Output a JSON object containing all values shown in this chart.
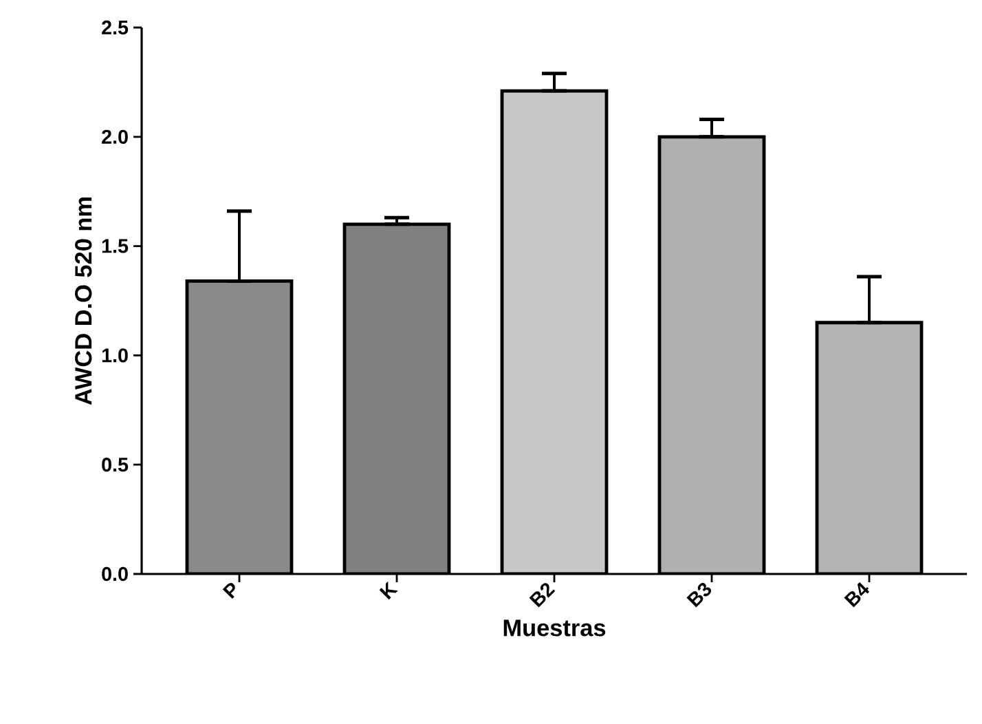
{
  "chart_data": {
    "type": "bar",
    "xlabel": "Muestras",
    "ylabel": "AWCD D.O 520 nm",
    "categories": [
      "P",
      "K",
      "B2",
      "B3",
      "B4"
    ],
    "values": [
      1.34,
      1.6,
      2.21,
      2.0,
      1.15
    ],
    "errors": [
      [
        1.34,
        1.66
      ],
      [
        1.6,
        1.63
      ],
      [
        2.21,
        2.29
      ],
      [
        2.0,
        2.08
      ],
      [
        1.15,
        1.36
      ]
    ],
    "colors": [
      "#8a8a8a",
      "#808080",
      "#c8c8c8",
      "#b0b0b0",
      "#b4b4b4"
    ],
    "ylim": [
      0,
      2.5
    ],
    "yticks": [
      {
        "value": 0,
        "label": "0.0"
      },
      {
        "value": 0.5,
        "label": "0.5"
      },
      {
        "value": 1,
        "label": "1.0"
      },
      {
        "value": 1.5,
        "label": "1.5"
      },
      {
        "value": 2,
        "label": "2.0"
      },
      {
        "value": 2.5,
        "label": "2.5"
      }
    ]
  }
}
